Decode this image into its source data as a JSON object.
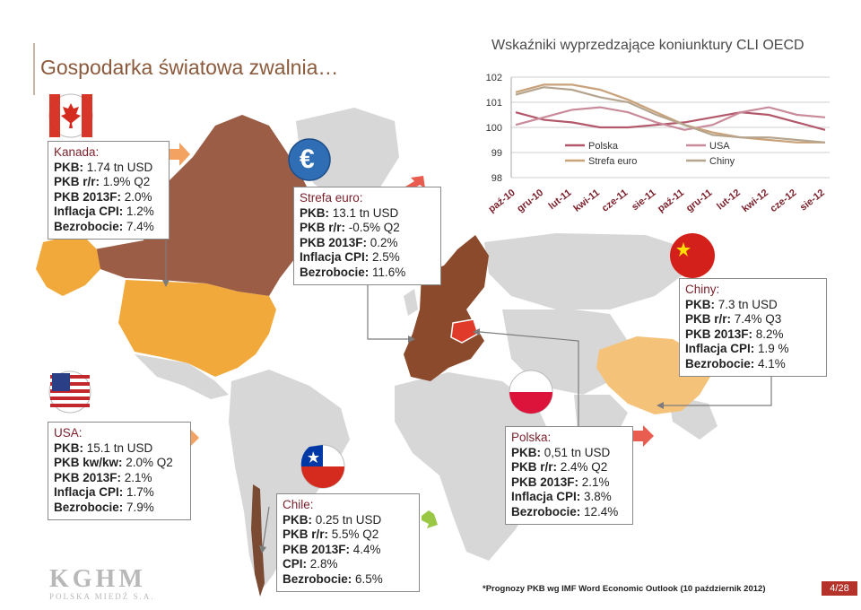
{
  "header": {
    "title": "Gospodarka światowa zwalnia…"
  },
  "chart_data": {
    "type": "line",
    "title": "Wskaźniki wyprzedzające koniunktury CLI OECD",
    "categories": [
      "paź-10",
      "gru-10",
      "lut-11",
      "kwi-11",
      "cze-11",
      "sie-11",
      "paź-11",
      "gru-11",
      "lut-12",
      "kwi-12",
      "cze-12",
      "sie-12"
    ],
    "ylim": [
      98,
      102
    ],
    "yticks": [
      "102",
      "101",
      "100",
      "99",
      "98"
    ],
    "legend_placement": "bottom-center",
    "series": [
      {
        "name": "Polska",
        "color": "#b3586a",
        "values": [
          100.6,
          100.3,
          100.2,
          100.0,
          100.0,
          100.1,
          100.2,
          100.4,
          100.6,
          100.5,
          100.2,
          99.9
        ]
      },
      {
        "name": "USA",
        "color": "#c98a9a",
        "values": [
          100.1,
          100.4,
          100.7,
          100.8,
          100.6,
          100.2,
          99.9,
          100.1,
          100.6,
          100.8,
          100.5,
          100.4
        ]
      },
      {
        "name": "Strefa euro",
        "color": "#c9a27a",
        "values": [
          101.4,
          101.7,
          101.7,
          101.5,
          101.1,
          100.6,
          100.1,
          99.8,
          99.6,
          99.5,
          99.4,
          99.4
        ]
      },
      {
        "name": "Chiny",
        "color": "#b5a48e",
        "values": [
          101.3,
          101.6,
          101.5,
          101.2,
          101.0,
          100.5,
          100.1,
          99.7,
          99.6,
          99.6,
          99.5,
          99.4
        ]
      }
    ]
  },
  "regions": {
    "kanada": {
      "heading": "Kanada:",
      "lines": [
        [
          "PKB:",
          " 1.74 tn USD"
        ],
        [
          "PKB r/r:",
          " 1.9% Q2"
        ],
        [
          "PKB 2013F:",
          " 2.0%"
        ],
        [
          "Inflacja CPI:",
          " 1.2%"
        ],
        [
          "Bezrobocie:",
          " 7.4%"
        ]
      ]
    },
    "euro": {
      "heading": "Strefa euro:",
      "lines": [
        [
          "PKB:",
          " 13.1 tn USD"
        ],
        [
          "PKB r/r:",
          " -0.5% Q2"
        ],
        [
          "PKB 2013F:",
          " 0.2%"
        ],
        [
          "Inflacja CPI:",
          " 2.5%"
        ],
        [
          "Bezrobocie:",
          " 11.6%"
        ]
      ]
    },
    "chiny": {
      "heading": "Chiny:",
      "lines": [
        [
          "PKB:",
          " 7.3 tn USD"
        ],
        [
          "PKB r/r:",
          " 7.4% Q3"
        ],
        [
          "PKB 2013F:",
          " 8.2%"
        ],
        [
          "Inflacja CPI:",
          " 1.9 %"
        ],
        [
          "Bezrobocie:",
          " 4.1%"
        ]
      ]
    },
    "usa": {
      "heading": "USA:",
      "lines": [
        [
          "PKB:",
          " 15.1 tn USD"
        ],
        [
          "PKB kw/kw:",
          " 2.0% Q2"
        ],
        [
          "PKB 2013F:",
          " 2.1%"
        ],
        [
          "Inflacja CPI:",
          " 1.7%"
        ],
        [
          "Bezrobocie:",
          " 7.9%"
        ]
      ]
    },
    "chile": {
      "heading": "Chile:",
      "lines": [
        [
          "PKB:",
          " 0.25 tn USD"
        ],
        [
          "PKB r/r:",
          " 5.5% Q2"
        ],
        [
          "PKB 2013F:",
          " 4.4%"
        ],
        [
          "CPI:",
          " 2.8%"
        ],
        [
          "Bezrobocie:",
          " 6.5%"
        ]
      ]
    },
    "polska": {
      "heading": "Polska:",
      "lines": [
        [
          "PKB:",
          " 0,51 tn USD"
        ],
        [
          "PKB r/r:",
          " 2.4% Q2"
        ],
        [
          "PKB 2013F:",
          " 2.1%"
        ],
        [
          "Inflacja CPI:",
          " 3.8%"
        ],
        [
          "Bezrobocie:",
          " 12.4%"
        ]
      ]
    }
  },
  "icons": {
    "euro_symbol": "€"
  },
  "colors": {
    "brown_dark": "#8b4a2b",
    "brown_mid": "#9b5d45",
    "orange": "#f2a93b",
    "orange_light": "#f5c27a",
    "grey_land": "#d9d9d9",
    "arrow_orange": "#f4a261",
    "arrow_red": "#e85d4f",
    "arrow_green": "#9ac845"
  },
  "footer": {
    "footnote": "*Prognozy PKB wg  IMF Word Economic Outlook (10 październik 2012)",
    "page": "4/28",
    "logo_big": "KGHM",
    "logo_small": "POLSKA MIEDŹ S.A."
  }
}
